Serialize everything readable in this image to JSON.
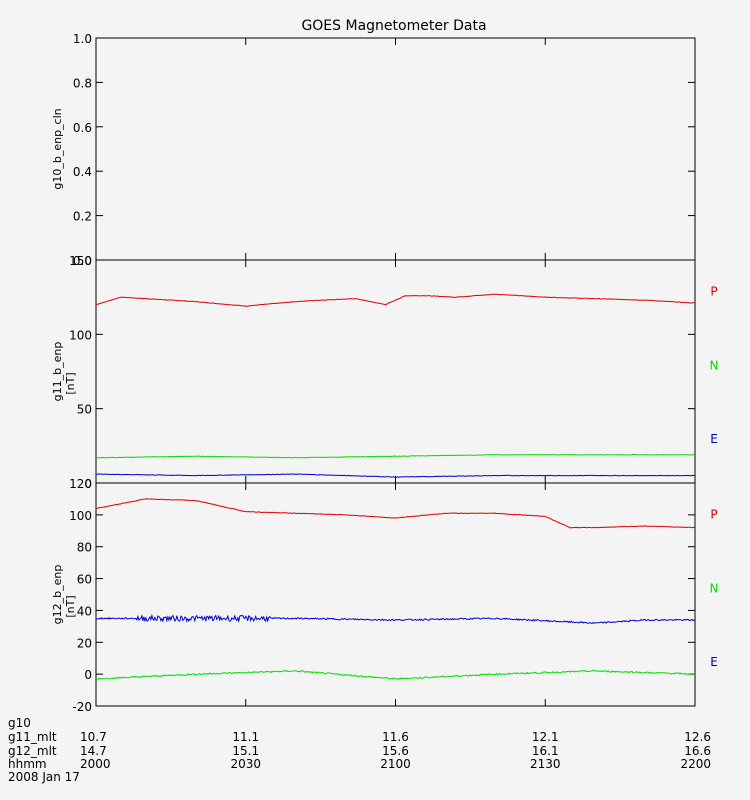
{
  "chart_data": {
    "title": "GOES Magnetometer Data",
    "panels": [
      {
        "type": "line",
        "ylabel": "g10_b_enp_cln",
        "ylim": [
          0.0,
          1.0
        ],
        "yticks": [
          0.0,
          0.2,
          0.4,
          0.6,
          0.8,
          1.0
        ],
        "ytick_labels": [
          "0.0",
          "0.2",
          "0.4",
          "0.6",
          "0.8",
          "1.0"
        ],
        "series": []
      },
      {
        "type": "line",
        "ylabel": "g11_b_enp",
        "yunit": "[nT]",
        "ylim": [
          0,
          150
        ],
        "yticks": [
          0,
          50,
          100,
          150
        ],
        "ytick_labels": [
          "0",
          "50",
          "100",
          "150"
        ],
        "series": [
          {
            "name": "P",
            "color": "#dd0000",
            "x": [
              0,
              5,
              10,
              20,
              30,
              40,
              45,
              52,
              58,
              62,
              66,
              72,
              80,
              90,
              100,
              110,
              120
            ],
            "y": [
              120,
              125,
              124,
              122,
              119,
              122,
              123,
              124,
              120,
              126,
              126,
              125,
              127,
              125,
              124,
              123,
              121
            ]
          },
          {
            "name": "N",
            "color": "#00dd00",
            "x": [
              0,
              20,
              40,
              60,
              80,
              100,
              120
            ],
            "y": [
              17,
              18,
              17,
              18,
              19,
              19,
              19
            ]
          },
          {
            "name": "E",
            "color": "#0000cc",
            "x": [
              0,
              20,
              40,
              60,
              80,
              100,
              120
            ],
            "y": [
              6,
              5,
              6,
              4,
              5,
              5,
              5
            ]
          }
        ]
      },
      {
        "type": "line",
        "ylabel": "g12_b_enp",
        "yunit": "[nT]",
        "ylim": [
          -20,
          120
        ],
        "yticks": [
          -20,
          0,
          20,
          40,
          60,
          80,
          100,
          120
        ],
        "ytick_labels": [
          "-20",
          "0",
          "20",
          "40",
          "60",
          "80",
          "100",
          "120"
        ],
        "series": [
          {
            "name": "P",
            "color": "#dd0000",
            "x": [
              0,
              10,
              20,
              30,
              40,
              50,
              60,
              70,
              80,
              90,
              95,
              100,
              110,
              120
            ],
            "y": [
              104,
              110,
              109,
              102,
              101,
              100,
              98,
              101,
              101,
              99,
              92,
              92,
              93,
              92
            ]
          },
          {
            "name": "N",
            "color": "#00dd00",
            "x": [
              0,
              20,
              40,
              60,
              80,
              100,
              110,
              120
            ],
            "y": [
              -3,
              0,
              2,
              -3,
              0,
              2,
              1,
              0
            ]
          },
          {
            "name": "E",
            "color": "#0000cc",
            "x": [
              0,
              20,
              40,
              60,
              80,
              100,
              110,
              120
            ],
            "y": [
              35,
              35,
              35,
              34,
              35,
              32,
              34,
              34
            ]
          }
        ]
      }
    ],
    "x_axis_rows": [
      {
        "label": "g10",
        "values": [
          "",
          "",
          "",
          "",
          ""
        ]
      },
      {
        "label": "g11_mlt",
        "values": [
          "10.7",
          "11.1",
          "11.6",
          "12.1",
          "12.6"
        ]
      },
      {
        "label": "g12_mlt",
        "values": [
          "14.7",
          "15.1",
          "15.6",
          "16.1",
          "16.6"
        ]
      },
      {
        "label": "hhmm",
        "values": [
          "2000",
          "2030",
          "2100",
          "2130",
          "2200"
        ]
      }
    ],
    "xticks": [
      0,
      30,
      60,
      90,
      120
    ],
    "xlim": [
      0,
      120
    ],
    "date": "2008 Jan 17"
  }
}
